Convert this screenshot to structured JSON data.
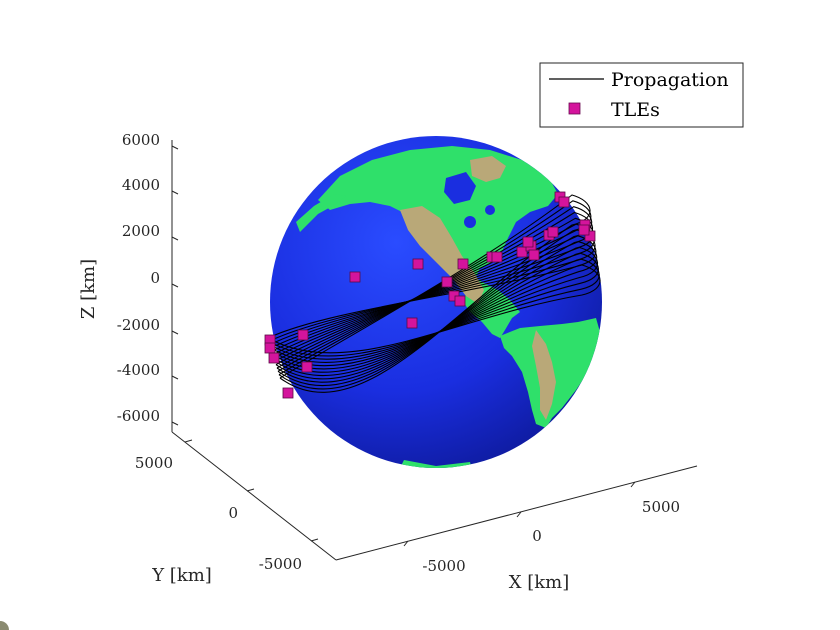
{
  "chart_data": {
    "type": "scatter",
    "view": "3d",
    "xlabel": "X [km]",
    "ylabel": "Y [km]",
    "zlabel": "Z [km]",
    "x_ticks": [
      "-5000",
      "0",
      "5000"
    ],
    "y_ticks": [
      "-5000",
      "0",
      "5000"
    ],
    "z_ticks": [
      "6000",
      "4000",
      "2000",
      "0",
      "-2000",
      "-4000",
      "-6000"
    ],
    "legend": {
      "location": "top-right",
      "entries": [
        {
          "label": "Propagation",
          "marker": "line",
          "color": "#000000"
        },
        {
          "label": "TLEs",
          "marker": "square",
          "color": "#d4149c"
        }
      ]
    },
    "globe": {
      "ocean_color": "#1a2ee0",
      "land_color": "#2fe06a",
      "highland_color": "#b9a878"
    },
    "tle_marker_color": "#d4149c",
    "orbit_line_color": "#000000",
    "tle_count": 26
  }
}
